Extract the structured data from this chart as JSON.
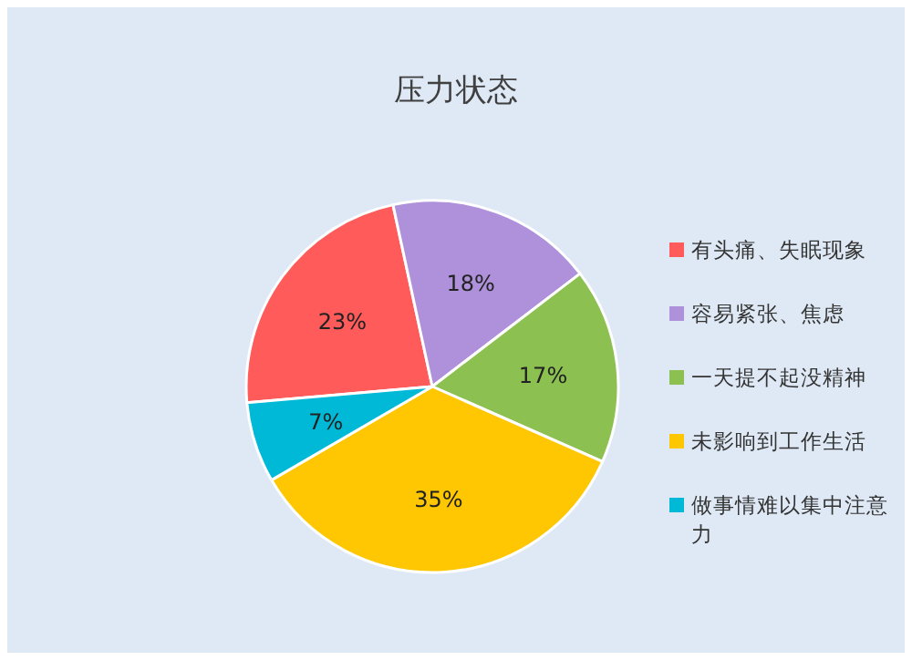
{
  "chart_data": {
    "type": "pie",
    "title": "压力状态",
    "categories": [
      "有头痛、失眠现象",
      "容易紧张、焦虑",
      "一天提不起没精神",
      "未影响到工作生活",
      "做事情难以集中注意力"
    ],
    "values": [
      23,
      18,
      17,
      35,
      7
    ],
    "colors": [
      "#ff5b5b",
      "#ae91da",
      "#8cc152",
      "#ffc602",
      "#00b9d6"
    ],
    "value_labels": [
      "23%",
      "18%",
      "17%",
      "35%",
      "7%"
    ],
    "legend": "right"
  }
}
